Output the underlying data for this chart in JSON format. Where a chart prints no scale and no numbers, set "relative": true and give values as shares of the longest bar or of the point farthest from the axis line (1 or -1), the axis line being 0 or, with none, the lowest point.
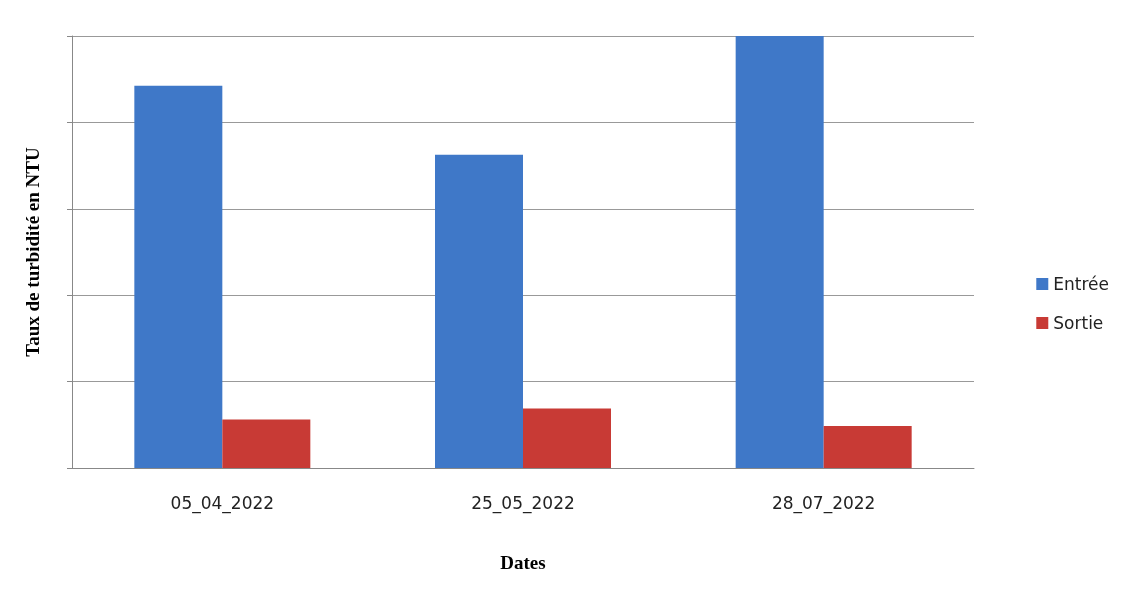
{
  "chart_data": {
    "type": "bar",
    "xlabel": "Dates",
    "ylabel": "Taux de turbidité en NTU",
    "categories": [
      "05_04_2022",
      "25_05_2022",
      "28_07_2022"
    ],
    "series": [
      {
        "name": "Entrée",
        "color": "#3f78c8",
        "values": [
          0.885,
          0.725,
          1
        ]
      },
      {
        "name": "Sortie",
        "color": "#c83a35",
        "values": [
          0.1125,
          0.1375,
          0.0975
        ]
      }
    ],
    "relative": true,
    "grid": "y",
    "legend": "right"
  }
}
